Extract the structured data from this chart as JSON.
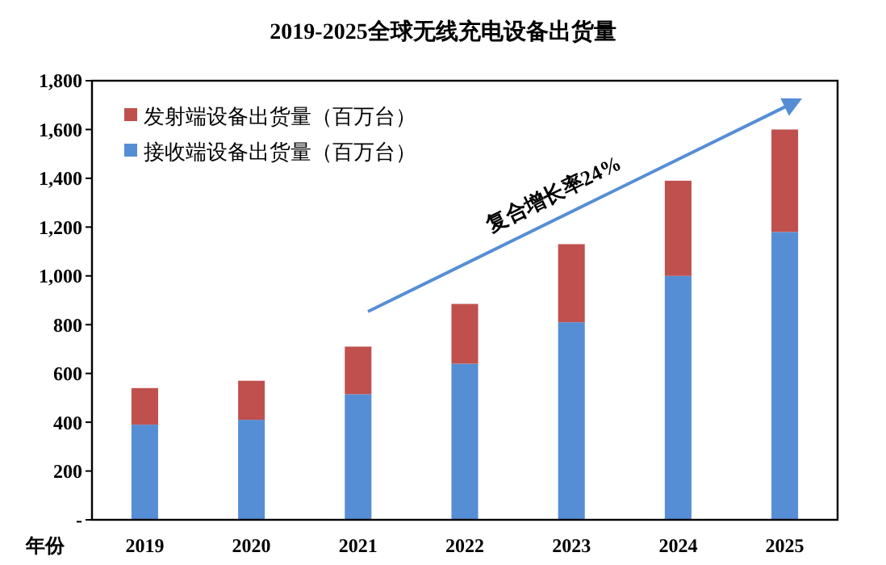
{
  "chart_data": {
    "type": "bar",
    "title": "2019-2025全球无线充电设备出货量",
    "xlabel": "年份",
    "categories": [
      "2019",
      "2020",
      "2021",
      "2022",
      "2023",
      "2024",
      "2025"
    ],
    "stacked": true,
    "series": [
      {
        "name": "接收端设备出货量（百万台）",
        "color": "#558ed5",
        "values": [
          390,
          410,
          515,
          640,
          810,
          1000,
          1180
        ]
      },
      {
        "name": "发射端设备出货量（百万台）",
        "color": "#c0504d",
        "values": [
          150,
          160,
          195,
          245,
          320,
          390,
          420
        ]
      }
    ],
    "ylim": [
      0,
      1800
    ],
    "yticks": [
      {
        "value": 0,
        "label": "-"
      },
      {
        "value": 200,
        "label": "200"
      },
      {
        "value": 400,
        "label": "400"
      },
      {
        "value": 600,
        "label": "600"
      },
      {
        "value": 800,
        "label": "800"
      },
      {
        "value": 1000,
        "label": "1,000"
      },
      {
        "value": 1200,
        "label": "1,200"
      },
      {
        "value": 1400,
        "label": "1,400"
      },
      {
        "value": 1600,
        "label": "1,600"
      },
      {
        "value": 1800,
        "label": "1,800"
      }
    ],
    "grid": false,
    "legend": "top left",
    "annotations": [
      "复合增长率24%"
    ]
  }
}
